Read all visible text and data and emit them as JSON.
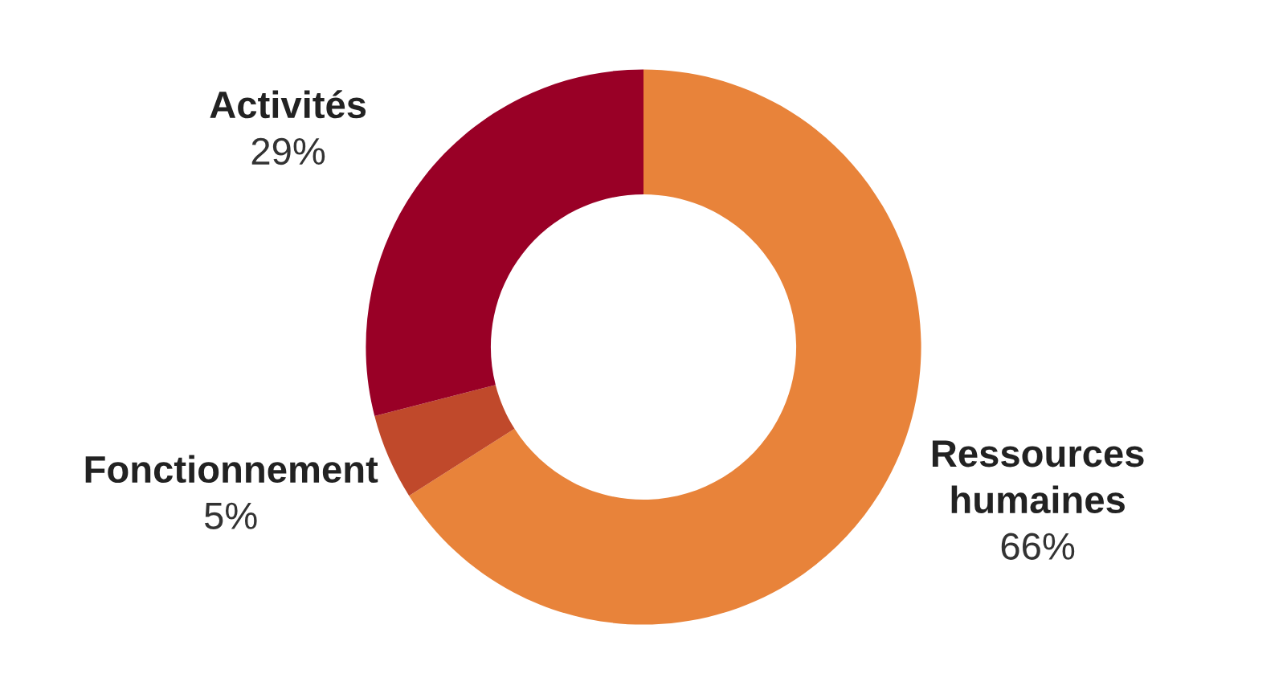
{
  "chart_data": {
    "type": "donut",
    "categories": [
      "Ressources\nhumaines",
      "Fonctionnement",
      "Activités"
    ],
    "values": [
      66,
      5,
      29
    ],
    "value_labels": [
      "66%",
      "5%",
      "29%"
    ],
    "colors": [
      "#e8833a",
      "#c0492b",
      "#990026"
    ],
    "legend": false
  }
}
